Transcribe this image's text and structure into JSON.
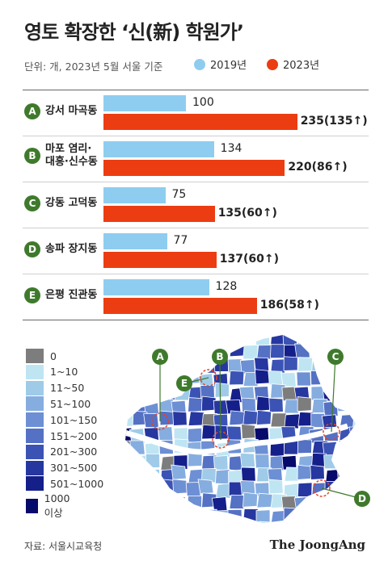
{
  "header": {
    "title": "영토 확장한 ‘신(新) 학원가’",
    "subtitle": "단위: 개, 2023년 5월 서울 기준"
  },
  "colors": {
    "y2019": "#8fcdf0",
    "y2023": "#ec3d12",
    "marker_green": "#3f7a2c",
    "dash_circle": "#e2462a"
  },
  "chart_data": {
    "type": "bar",
    "orientation": "horizontal",
    "categories": [
      "A 강서 마곡동",
      "B 마포 염리·대흥·신수동",
      "C 강동 고덕동",
      "D 송파 장지동",
      "E 은평 진관동"
    ],
    "series": [
      {
        "name": "2019년",
        "values": [
          100,
          134,
          75,
          77,
          128
        ]
      },
      {
        "name": "2023년",
        "values": [
          235,
          220,
          135,
          137,
          186
        ]
      }
    ],
    "rows": [
      {
        "letter": "A",
        "label_lines": [
          "강서 마곡동"
        ],
        "v2019": 100,
        "v2023": 235,
        "label2019": "100",
        "label2023": "235(135↑)"
      },
      {
        "letter": "B",
        "label_lines": [
          "마포 염리·",
          "대흥·신수동"
        ],
        "v2019": 134,
        "v2023": 220,
        "label2019": "134",
        "label2023": "220(86↑)"
      },
      {
        "letter": "C",
        "label_lines": [
          "강동 고덕동"
        ],
        "v2019": 75,
        "v2023": 135,
        "label2019": "75",
        "label2023": "135(60↑)"
      },
      {
        "letter": "D",
        "label_lines": [
          "송파 장지동"
        ],
        "v2019": 77,
        "v2023": 137,
        "label2019": "77",
        "label2023": "137(60↑)"
      },
      {
        "letter": "E",
        "label_lines": [
          "은평 진관동"
        ],
        "v2019": 128,
        "v2023": 186,
        "label2019": "128",
        "label2023": "186(58↑)"
      }
    ],
    "legend": {
      "placement": "top",
      "items": [
        "2019년",
        "2023년"
      ]
    }
  },
  "map_legend": [
    {
      "label": "0",
      "color": "#7d7d7d"
    },
    {
      "label": "1~10",
      "color": "#bfe5f3"
    },
    {
      "label": "11~50",
      "color": "#9fcbe8"
    },
    {
      "label": "51~100",
      "color": "#86ade0"
    },
    {
      "label": "101~150",
      "color": "#6d8fd4"
    },
    {
      "label": "151~200",
      "color": "#5471c4"
    },
    {
      "label": "201~300",
      "color": "#3b53b4"
    },
    {
      "label": "301~500",
      "color": "#2637a0"
    },
    {
      "label": "501~1000",
      "color": "#141f8a"
    },
    {
      "label": "1000 이상",
      "color": "#060a6a"
    }
  ],
  "map_markers": [
    "A",
    "B",
    "C",
    "D",
    "E"
  ],
  "footer": {
    "source": "자료: 서울시교육청",
    "brand": "The JoongAng"
  }
}
